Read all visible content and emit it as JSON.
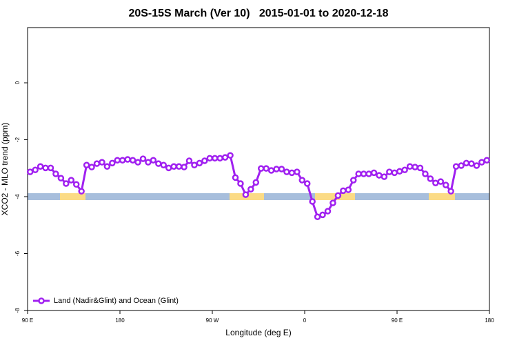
{
  "chart_data": {
    "type": "line",
    "title": "20S-15S March (Ver 10)   2015-01-01 to 2020-12-18",
    "x_label": "Longitude (deg E)",
    "y_label": "XCO2 - MLO trend (ppm)",
    "xlim": [
      90,
      540
    ],
    "ylim": [
      -8,
      1.94
    ],
    "xticks": [
      {
        "value": 90,
        "label": "90 E"
      },
      180,
      {
        "value": 270,
        "label": "90 W"
      },
      {
        "value": 360,
        "label": "0"
      },
      {
        "value": 450,
        "label": "90 E"
      },
      {
        "value": 540,
        "label": "180"
      }
    ],
    "yticks": [
      0,
      -2,
      -4,
      -6,
      -8
    ],
    "legend": "lower left",
    "x": [
      92.5,
      97.5,
      102.5,
      107.5,
      112.5,
      117.5,
      122.5,
      127.5,
      132.5,
      137.5,
      142.5,
      147.5,
      152.5,
      157.5,
      162.5,
      167.5,
      172.5,
      177.5,
      182.5,
      187.5,
      192.5,
      197.5,
      202.5,
      207.5,
      212.5,
      217.5,
      222.5,
      227.5,
      232.5,
      237.5,
      242.5,
      247.5,
      252.5,
      257.5,
      262.5,
      267.5,
      272.5,
      277.5,
      282.5,
      287.5,
      292.5,
      297.5,
      302.5,
      307.5,
      312.5,
      317.5,
      322.5,
      327.5,
      332.5,
      337.5,
      342.5,
      347.5,
      352.5,
      357.5,
      362.5,
      367.5,
      372.5,
      377.5,
      382.5,
      387.5,
      392.5,
      397.5,
      402.5,
      407.5,
      412.5,
      417.5,
      422.5,
      427.5,
      432.5,
      437.5,
      442.5,
      447.5,
      452.5,
      457.5,
      462.5,
      467.5,
      472.5,
      477.5,
      482.5,
      487.5,
      492.5,
      497.5,
      502.5,
      507.5,
      512.5,
      517.5,
      522.5,
      527.5,
      532.5,
      537.5
    ],
    "series": [
      {
        "name": "Land (Nadir&Glint) and Ocean (Glint)",
        "color": "#a020f0",
        "values": [
          -3.13,
          -3.06,
          -2.94,
          -2.99,
          -2.99,
          -3.2,
          -3.35,
          -3.54,
          -3.42,
          -3.57,
          -3.81,
          -2.89,
          -2.96,
          -2.84,
          -2.79,
          -2.94,
          -2.82,
          -2.72,
          -2.72,
          -2.69,
          -2.72,
          -2.79,
          -2.67,
          -2.79,
          -2.72,
          -2.84,
          -2.89,
          -2.99,
          -2.94,
          -2.94,
          -2.96,
          -2.74,
          -2.89,
          -2.82,
          -2.74,
          -2.65,
          -2.65,
          -2.65,
          -2.62,
          -2.55,
          -3.33,
          -3.54,
          -3.93,
          -3.74,
          -3.5,
          -3.01,
          -3.01,
          -3.08,
          -3.03,
          -3.03,
          -3.13,
          -3.16,
          -3.13,
          -3.42,
          -3.54,
          -4.17,
          -4.71,
          -4.64,
          -4.51,
          -4.22,
          -3.96,
          -3.79,
          -3.76,
          -3.42,
          -3.2,
          -3.2,
          -3.2,
          -3.16,
          -3.25,
          -3.3,
          -3.13,
          -3.16,
          -3.11,
          -3.06,
          -2.94,
          -2.96,
          -2.99,
          -3.2,
          -3.37,
          -3.52,
          -3.47,
          -3.59,
          -3.81,
          -2.94,
          -2.91,
          -2.82,
          -2.84,
          -2.91,
          -2.79,
          -2.72
        ]
      }
    ]
  }
}
